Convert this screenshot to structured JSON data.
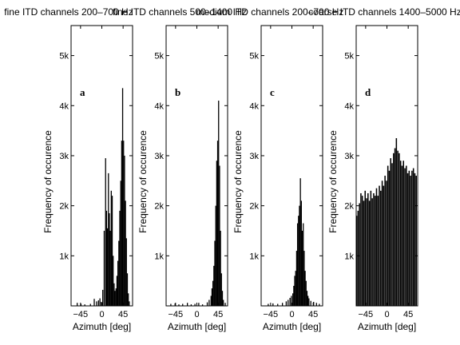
{
  "chart_data": [
    {
      "type": "bar",
      "panel": "a",
      "title": "fine ITD channels 200–700 Hz",
      "xlabel": "Azimuth [deg]",
      "ylabel": "Frequency of occurence",
      "xlim": [
        -65,
        65
      ],
      "ylim": [
        0,
        5600
      ],
      "xticks": [
        -45,
        0,
        45
      ],
      "yticks": [
        1000,
        2000,
        3000,
        4000,
        5000
      ],
      "xtick_labels": [
        "−45",
        "0",
        "45"
      ],
      "ytick_labels": [
        "1k",
        "2k",
        "3k",
        "4k",
        "5k"
      ],
      "bin_width": 2.2,
      "bins": [
        [
          -52,
          60
        ],
        [
          -44,
          40
        ],
        [
          -36,
          30
        ],
        [
          -24,
          40
        ],
        [
          -16,
          140
        ],
        [
          -11,
          90
        ],
        [
          -7,
          110
        ],
        [
          -4,
          150
        ],
        [
          -1,
          80
        ],
        [
          2,
          320
        ],
        [
          5,
          1500
        ],
        [
          8,
          2950
        ],
        [
          10,
          1900
        ],
        [
          12,
          1550
        ],
        [
          14,
          2650
        ],
        [
          16,
          1850
        ],
        [
          18,
          1500
        ],
        [
          20,
          2300
        ],
        [
          22,
          2200
        ],
        [
          24,
          1000
        ],
        [
          26,
          450
        ],
        [
          28,
          300
        ],
        [
          30,
          350
        ],
        [
          32,
          600
        ],
        [
          34,
          900
        ],
        [
          36,
          1300
        ],
        [
          38,
          1900
        ],
        [
          40,
          2500
        ],
        [
          42,
          3300
        ],
        [
          44,
          4350
        ],
        [
          46,
          3300
        ],
        [
          48,
          3000
        ],
        [
          50,
          2100
        ],
        [
          52,
          1350
        ],
        [
          54,
          650
        ],
        [
          56,
          250
        ],
        [
          58,
          90
        ]
      ]
    },
    {
      "type": "bar",
      "panel": "b",
      "title": "fine ITD channels 500–1400 Hz",
      "xlabel": "Azimuth [deg]",
      "ylabel": "Frequency of occurence",
      "xlim": [
        -65,
        65
      ],
      "ylim": [
        0,
        5600
      ],
      "xticks": [
        -45,
        0,
        45
      ],
      "yticks": [
        1000,
        2000,
        3000,
        4000,
        5000
      ],
      "xtick_labels": [
        "−45",
        "0",
        "45"
      ],
      "ytick_labels": [
        "1k",
        "2k",
        "3k",
        "4k",
        "5k"
      ],
      "bin_width": 2.2,
      "bins": [
        [
          -55,
          40
        ],
        [
          -46,
          50
        ],
        [
          -38,
          30
        ],
        [
          -30,
          40
        ],
        [
          -20,
          60
        ],
        [
          -12,
          30
        ],
        [
          -4,
          40
        ],
        [
          4,
          60
        ],
        [
          12,
          30
        ],
        [
          22,
          70
        ],
        [
          26,
          120
        ],
        [
          30,
          200
        ],
        [
          32,
          350
        ],
        [
          34,
          500
        ],
        [
          36,
          800
        ],
        [
          38,
          1300
        ],
        [
          40,
          2000
        ],
        [
          42,
          2900
        ],
        [
          44,
          3300
        ],
        [
          46,
          4100
        ],
        [
          48,
          2800
        ],
        [
          50,
          1500
        ],
        [
          52,
          650
        ],
        [
          54,
          300
        ],
        [
          56,
          120
        ],
        [
          60,
          60
        ]
      ]
    },
    {
      "type": "bar",
      "panel": "c",
      "title": "medium ITD channels 200–700 Hz",
      "xlabel": "Azimuth [deg]",
      "ylabel": "Frequency of occurence",
      "xlim": [
        -65,
        65
      ],
      "ylim": [
        0,
        5600
      ],
      "xticks": [
        -45,
        0,
        45
      ],
      "yticks": [
        1000,
        2000,
        3000,
        4000,
        5000
      ],
      "xtick_labels": [
        "−45",
        "0",
        "45"
      ],
      "ytick_labels": [
        "1k",
        "2k",
        "3k",
        "4k",
        "5k"
      ],
      "bin_width": 2.2,
      "bins": [
        [
          -50,
          40
        ],
        [
          -40,
          50
        ],
        [
          -30,
          40
        ],
        [
          -20,
          60
        ],
        [
          -12,
          90
        ],
        [
          -8,
          120
        ],
        [
          -4,
          160
        ],
        [
          -1,
          200
        ],
        [
          2,
          250
        ],
        [
          4,
          400
        ],
        [
          6,
          600
        ],
        [
          8,
          700
        ],
        [
          10,
          1100
        ],
        [
          12,
          1650
        ],
        [
          14,
          1800
        ],
        [
          16,
          2000
        ],
        [
          18,
          2550
        ],
        [
          20,
          2100
        ],
        [
          22,
          1500
        ],
        [
          24,
          1650
        ],
        [
          26,
          1100
        ],
        [
          28,
          700
        ],
        [
          30,
          500
        ],
        [
          32,
          300
        ],
        [
          34,
          200
        ],
        [
          36,
          150
        ],
        [
          40,
          100
        ],
        [
          46,
          80
        ],
        [
          52,
          60
        ],
        [
          58,
          40
        ]
      ]
    },
    {
      "type": "bar",
      "panel": "d",
      "title": "coarse ITD channels 1400–5000 Hz",
      "xlabel": "Azimuth [deg]",
      "ylabel": "Frequency of occurence",
      "xlim": [
        -65,
        65
      ],
      "ylim": [
        0,
        5600
      ],
      "xticks": [
        -45,
        0,
        45
      ],
      "yticks": [
        1000,
        2000,
        3000,
        4000,
        5000
      ],
      "xtick_labels": [
        "−45",
        "0",
        "45"
      ],
      "ytick_labels": [
        "1k",
        "2k",
        "3k",
        "4k",
        "5k"
      ],
      "bin_width": 2.6,
      "bins": [
        [
          -64,
          1800
        ],
        [
          -61,
          1900
        ],
        [
          -58,
          2050
        ],
        [
          -55,
          2250
        ],
        [
          -52,
          2200
        ],
        [
          -49,
          2100
        ],
        [
          -46,
          2300
        ],
        [
          -43,
          2150
        ],
        [
          -40,
          2250
        ],
        [
          -37,
          2100
        ],
        [
          -34,
          2300
        ],
        [
          -31,
          2150
        ],
        [
          -28,
          2250
        ],
        [
          -25,
          2200
        ],
        [
          -22,
          2350
        ],
        [
          -19,
          2200
        ],
        [
          -16,
          2400
        ],
        [
          -13,
          2300
        ],
        [
          -10,
          2500
        ],
        [
          -7,
          2400
        ],
        [
          -4,
          2600
        ],
        [
          -1,
          2500
        ],
        [
          2,
          2800
        ],
        [
          5,
          2700
        ],
        [
          8,
          2950
        ],
        [
          11,
          2850
        ],
        [
          14,
          3050
        ],
        [
          17,
          3150
        ],
        [
          20,
          3350
        ],
        [
          23,
          3100
        ],
        [
          26,
          3050
        ],
        [
          29,
          2900
        ],
        [
          32,
          2800
        ],
        [
          35,
          2900
        ],
        [
          38,
          2750
        ],
        [
          41,
          2800
        ],
        [
          44,
          2650
        ],
        [
          47,
          2700
        ],
        [
          50,
          2600
        ],
        [
          53,
          2700
        ],
        [
          56,
          2750
        ],
        [
          59,
          2650
        ],
        [
          62,
          2600
        ]
      ]
    }
  ]
}
